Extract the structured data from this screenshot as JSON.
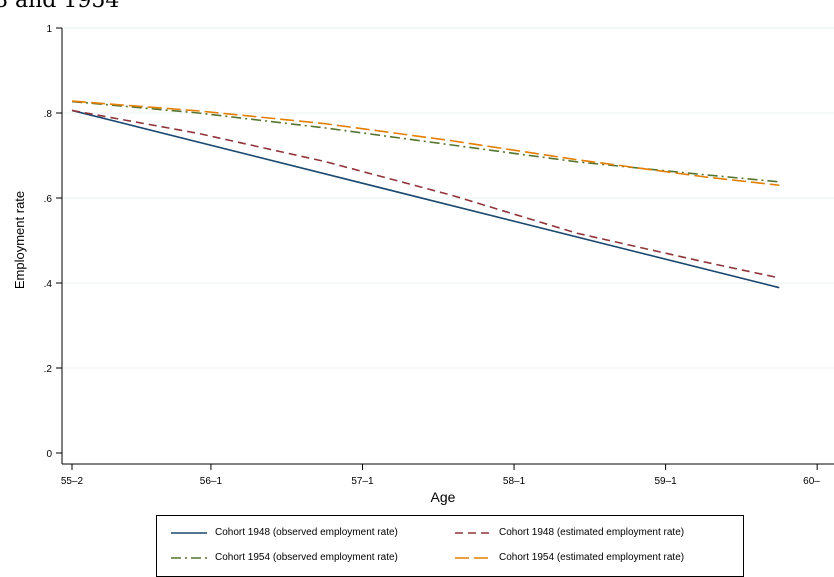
{
  "caption": "8 and 1954",
  "chart_data": {
    "type": "line",
    "xlabel": "Age",
    "ylabel": "Employment rate",
    "x_ticks": [
      "55–2",
      "56–1",
      "57–1",
      "58–1",
      "59–1",
      "60–"
    ],
    "x_tick_values": [
      0,
      11,
      23,
      35,
      47,
      59
    ],
    "y_ticks": [
      "0",
      ".2",
      ".4",
      ".6",
      ".8",
      "1"
    ],
    "y_tick_values": [
      0,
      0.2,
      0.4,
      0.6,
      0.8,
      1.0
    ],
    "ylim": [
      0,
      1
    ],
    "grid": "horizontal",
    "legend_position": "bottom",
    "series": [
      {
        "name": "Cohort 1948 (observed employment rate)",
        "color": "#1a476f",
        "dash": "none",
        "x": [
          0,
          56
        ],
        "y": [
          0.806,
          0.389
        ]
      },
      {
        "name": "Cohort 1948 (estimated employment rate)",
        "color": "#90353b",
        "dash": "dash",
        "x": [
          0,
          10,
          20,
          30,
          40,
          50,
          56
        ],
        "y": [
          0.806,
          0.752,
          0.686,
          0.607,
          0.517,
          0.45,
          0.412
        ]
      },
      {
        "name": "Cohort 1954 (observed employment rate)",
        "color": "#55752f",
        "dash": "dashdot",
        "x": [
          0,
          10,
          20,
          30,
          40,
          50,
          56
        ],
        "y": [
          0.827,
          0.8,
          0.765,
          0.725,
          0.685,
          0.655,
          0.638
        ]
      },
      {
        "name": "Cohort 1954 (estimated employment rate)",
        "color": "#e37e00",
        "dash": "longdash",
        "x": [
          0,
          10,
          20,
          30,
          40,
          50,
          56
        ],
        "y": [
          0.828,
          0.805,
          0.775,
          0.735,
          0.69,
          0.65,
          0.63
        ]
      }
    ]
  }
}
